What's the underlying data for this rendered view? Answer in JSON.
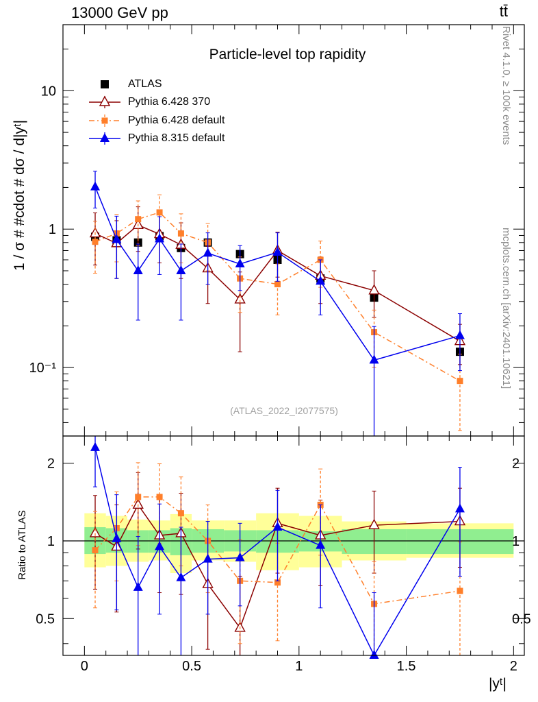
{
  "header": {
    "energy_label": "13000 GeV pp",
    "process_label": "tt̄",
    "side_label_top": "Rivet 4.1.0, ≥ 100k events",
    "side_label_bottom": "mcplots.cern.ch [arXiv:2401.10621]"
  },
  "chart_data": [
    {
      "type": "scatter",
      "title": "Particle-level top rapidity",
      "watermark": "(ATLAS_2022_I2077575)",
      "ylabel": "1 / σ # #cdot # dσ / d|yᵗ|",
      "xlim": [
        -0.1,
        2.05
      ],
      "ylim": [
        0.032,
        30
      ],
      "yscale": "log",
      "ytick_labels": [
        "10⁻¹",
        "1",
        "10"
      ],
      "ytick_values": [
        0.1,
        1,
        10
      ],
      "legend_position": "top-left",
      "bins": [
        {
          "lo": 0.0,
          "hi": 0.1
        },
        {
          "lo": 0.1,
          "hi": 0.2
        },
        {
          "lo": 0.2,
          "hi": 0.3
        },
        {
          "lo": 0.3,
          "hi": 0.4
        },
        {
          "lo": 0.4,
          "hi": 0.5
        },
        {
          "lo": 0.5,
          "hi": 0.65
        },
        {
          "lo": 0.65,
          "hi": 0.8
        },
        {
          "lo": 0.8,
          "hi": 1.0
        },
        {
          "lo": 1.0,
          "hi": 1.2
        },
        {
          "lo": 1.2,
          "hi": 1.5
        },
        {
          "lo": 1.5,
          "hi": 2.0
        }
      ],
      "x": [
        0.05,
        0.15,
        0.25,
        0.35,
        0.45,
        0.575,
        0.725,
        0.9,
        1.1,
        1.35,
        1.75
      ],
      "series": [
        {
          "name": "ATLAS",
          "color": "#000000",
          "marker": "square-filled",
          "line": "none",
          "values": [
            0.88,
            0.83,
            0.8,
            0.89,
            0.73,
            0.8,
            0.66,
            0.6,
            0.44,
            0.32,
            0.13
          ],
          "err_lo": [
            0.02,
            0.02,
            0.02,
            0.02,
            0.02,
            0.02,
            0.02,
            0.02,
            0.015,
            0.01,
            0.005
          ],
          "err_hi": [
            0.02,
            0.02,
            0.02,
            0.02,
            0.02,
            0.02,
            0.02,
            0.02,
            0.015,
            0.01,
            0.005
          ]
        },
        {
          "name": "Pythia 6.428 370",
          "color": "#8b0000",
          "marker": "triangle-open",
          "line": "solid",
          "values": [
            0.93,
            0.79,
            1.07,
            0.92,
            0.77,
            0.52,
            0.31,
            0.7,
            0.46,
            0.36,
            0.155
          ],
          "err_lo": [
            0.38,
            0.35,
            0.38,
            0.35,
            0.33,
            0.23,
            0.18,
            0.25,
            0.17,
            0.13,
            0.05
          ],
          "err_hi": [
            0.38,
            0.36,
            0.38,
            0.35,
            0.34,
            0.23,
            0.18,
            0.25,
            0.17,
            0.14,
            0.05
          ]
        },
        {
          "name": "Pythia 6.428 default",
          "color": "#ff7f2a",
          "marker": "square-filled-small",
          "line": "dashdot",
          "values": [
            0.81,
            0.93,
            1.18,
            1.32,
            0.93,
            0.8,
            0.44,
            0.4,
            0.6,
            0.18,
            0.08
          ],
          "err_lo": [
            0.33,
            0.35,
            0.42,
            0.45,
            0.36,
            0.3,
            0.19,
            0.16,
            0.22,
            0.08,
            0.045
          ],
          "err_hi": [
            0.33,
            0.35,
            0.42,
            0.45,
            0.36,
            0.3,
            0.19,
            0.16,
            0.22,
            0.08,
            0.045
          ]
        },
        {
          "name": "Pythia 8.315 default",
          "color": "#0000ee",
          "marker": "triangle-filled",
          "line": "solid",
          "values": [
            2.02,
            0.84,
            0.5,
            0.85,
            0.5,
            0.67,
            0.56,
            0.68,
            0.42,
            0.113,
            0.17
          ],
          "err_lo": [
            0.6,
            0.4,
            0.28,
            0.38,
            0.28,
            0.27,
            0.2,
            0.26,
            0.18,
            0.085,
            0.075
          ],
          "err_hi": [
            0.6,
            0.4,
            0.28,
            0.38,
            0.28,
            0.27,
            0.2,
            0.26,
            0.18,
            0.085,
            0.075
          ]
        }
      ]
    },
    {
      "type": "scatter",
      "title": "",
      "xlabel": "|yᵗ|",
      "ylabel": "Ratio to ATLAS",
      "xlim": [
        -0.1,
        2.05
      ],
      "ylim": [
        0.36,
        2.55
      ],
      "yscale": "log",
      "ytick_labels": [
        "0.5",
        "1",
        "2"
      ],
      "ytick_values": [
        0.5,
        1,
        2
      ],
      "xtick_labels": [
        "0",
        "0.5",
        "1",
        "1.5",
        "2"
      ],
      "xtick_values": [
        0,
        0.5,
        1,
        1.5,
        2
      ],
      "reference_line": 1,
      "band_stat": {
        "color": "#90ee90",
        "lo": [
          0.89,
          0.9,
          0.9,
          0.9,
          0.88,
          0.9,
          0.91,
          0.9,
          0.91,
          0.89,
          0.89
        ],
        "hi": [
          1.13,
          1.12,
          1.1,
          1.1,
          1.12,
          1.11,
          1.1,
          1.1,
          1.09,
          1.11,
          1.11
        ]
      },
      "band_total": {
        "color": "#ffff99",
        "lo": [
          0.79,
          0.8,
          0.83,
          0.84,
          0.75,
          0.84,
          0.83,
          0.77,
          0.79,
          0.84,
          0.86
        ],
        "hi": [
          1.28,
          1.25,
          1.21,
          1.2,
          1.27,
          1.2,
          1.2,
          1.28,
          1.25,
          1.19,
          1.17
        ]
      },
      "x": [
        0.05,
        0.15,
        0.25,
        0.35,
        0.45,
        0.575,
        0.725,
        0.9,
        1.1,
        1.35,
        1.75
      ],
      "series": [
        {
          "name": "Pythia 6.428 370",
          "color": "#8b0000",
          "marker": "triangle-open",
          "line": "solid",
          "values": [
            1.07,
            0.95,
            1.38,
            1.05,
            1.07,
            0.68,
            0.46,
            1.17,
            1.05,
            1.15,
            1.19
          ],
          "err_lo": [
            0.42,
            0.42,
            0.45,
            0.42,
            0.45,
            0.3,
            0.26,
            0.42,
            0.38,
            0.4,
            0.4
          ],
          "err_hi": [
            0.43,
            0.43,
            0.46,
            0.43,
            0.46,
            0.31,
            0.27,
            0.43,
            0.39,
            0.41,
            0.41
          ]
        },
        {
          "name": "Pythia 6.428 default",
          "color": "#ff7f2a",
          "marker": "square-filled-small",
          "line": "dashdot",
          "values": [
            0.92,
            1.12,
            1.48,
            1.48,
            1.28,
            1.0,
            0.7,
            0.69,
            1.38,
            0.57,
            0.64
          ],
          "err_lo": [
            0.37,
            0.42,
            0.52,
            0.5,
            0.48,
            0.37,
            0.3,
            0.28,
            0.5,
            0.25,
            0.34
          ],
          "err_hi": [
            0.38,
            0.43,
            0.53,
            0.51,
            0.49,
            0.38,
            0.31,
            0.29,
            0.52,
            0.26,
            0.35
          ]
        },
        {
          "name": "Pythia 8.315 default",
          "color": "#0000ee",
          "marker": "triangle-filled",
          "line": "solid",
          "values": [
            2.3,
            1.02,
            0.66,
            0.95,
            0.72,
            0.85,
            0.86,
            1.13,
            0.96,
            0.36,
            1.33
          ],
          "err_lo": [
            0.68,
            0.48,
            0.37,
            0.43,
            0.4,
            0.33,
            0.3,
            0.43,
            0.41,
            0.26,
            0.6
          ],
          "err_hi": [
            0.68,
            0.49,
            0.38,
            0.44,
            0.41,
            0.34,
            0.31,
            0.44,
            0.42,
            0.27,
            0.6
          ]
        }
      ]
    }
  ]
}
